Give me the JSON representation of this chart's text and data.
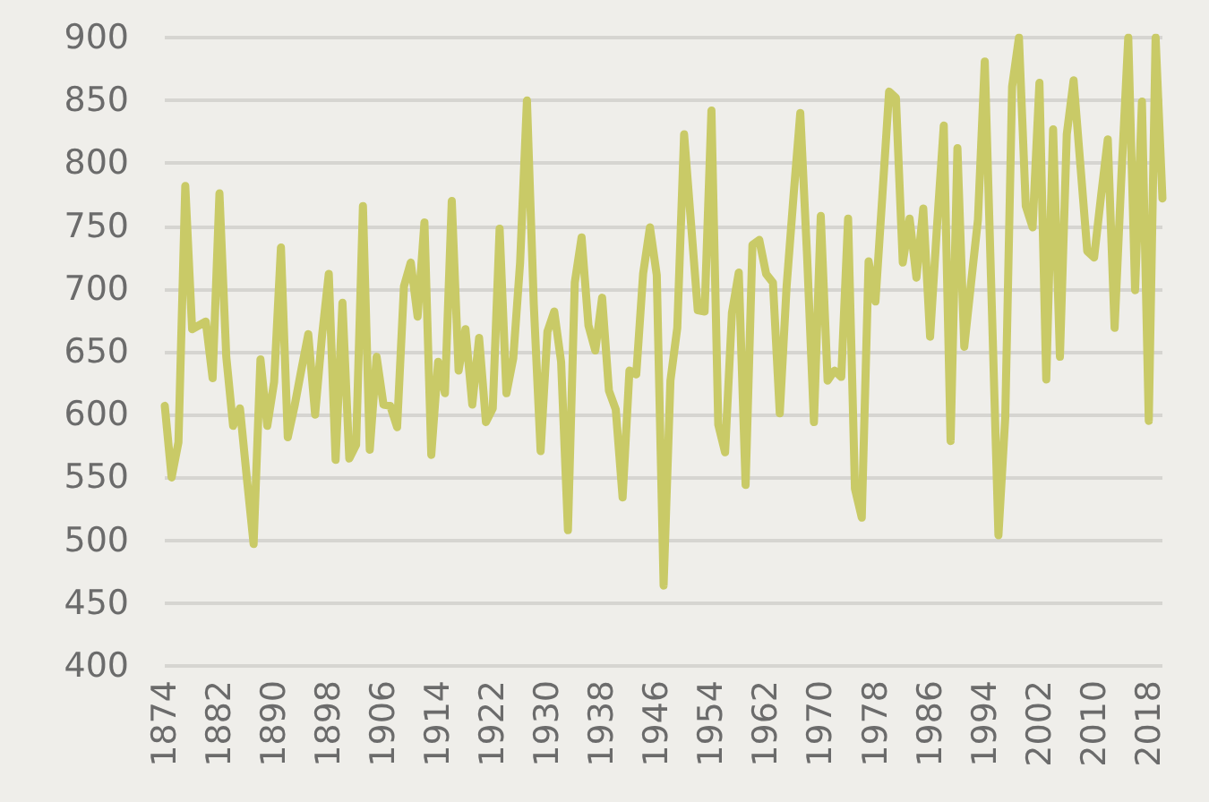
{
  "chart_data": {
    "type": "line",
    "x": [
      1874,
      1875,
      1876,
      1877,
      1878,
      1879,
      1880,
      1881,
      1882,
      1883,
      1884,
      1885,
      1886,
      1887,
      1888,
      1889,
      1890,
      1891,
      1892,
      1893,
      1894,
      1895,
      1896,
      1897,
      1898,
      1899,
      1900,
      1901,
      1902,
      1903,
      1904,
      1905,
      1906,
      1907,
      1908,
      1909,
      1910,
      1911,
      1912,
      1913,
      1914,
      1915,
      1916,
      1917,
      1918,
      1919,
      1920,
      1921,
      1922,
      1923,
      1924,
      1925,
      1926,
      1927,
      1928,
      1929,
      1930,
      1931,
      1932,
      1933,
      1934,
      1935,
      1936,
      1937,
      1938,
      1939,
      1940,
      1941,
      1942,
      1943,
      1944,
      1945,
      1946,
      1947,
      1948,
      1949,
      1950,
      1951,
      1952,
      1953,
      1954,
      1955,
      1956,
      1957,
      1958,
      1959,
      1960,
      1961,
      1962,
      1963,
      1964,
      1965,
      1966,
      1967,
      1968,
      1969,
      1970,
      1971,
      1972,
      1973,
      1974,
      1975,
      1976,
      1977,
      1978,
      1979,
      1980,
      1981,
      1982,
      1983,
      1984,
      1985,
      1986,
      1987,
      1988,
      1989,
      1990,
      1991,
      1992,
      1993,
      1994,
      1995,
      1996,
      1997,
      1998,
      1999,
      2000,
      2001,
      2002,
      2003,
      2004,
      2005,
      2006,
      2007,
      2008,
      2009,
      2010,
      2011,
      2012,
      2013,
      2014,
      2015,
      2016,
      2017,
      2018,
      2019,
      2020
    ],
    "series": [
      {
        "color": "#c9ca67",
        "values": [
          607,
          550,
          578,
          782,
          668,
          671,
          674,
          629,
          776,
          646,
          591,
          605,
          550,
          497,
          644,
          591,
          626,
          733,
          582,
          607,
          636,
          664,
          600,
          662,
          712,
          564,
          689,
          565,
          576,
          766,
          572,
          646,
          608,
          607,
          590,
          702,
          721,
          678,
          753,
          568,
          642,
          617,
          770,
          635,
          668,
          608,
          661,
          594,
          605,
          748,
          617,
          645,
          721,
          850,
          688,
          571,
          666,
          682,
          642,
          508,
          705,
          741,
          671,
          651,
          693,
          619,
          604,
          534,
          635,
          632,
          712,
          749,
          711,
          464,
          627,
          669,
          823,
          753,
          683,
          682,
          842,
          592,
          570,
          681,
          713,
          544,
          735,
          739,
          712,
          705,
          601,
          702,
          773,
          840,
          726,
          594,
          758,
          627,
          635,
          630,
          756,
          541,
          518,
          722,
          690,
          773,
          857,
          852,
          721,
          756,
          709,
          764,
          662,
          749,
          830,
          579,
          812,
          654,
          705,
          755,
          881,
          692,
          504,
          598,
          861,
          900,
          766,
          749,
          864,
          628,
          827,
          646,
          823,
          866,
          798,
          730,
          725,
          773,
          819,
          669,
          790,
          900,
          699,
          849,
          595,
          900,
          772
        ]
      }
    ],
    "xlim": [
      1874,
      2020
    ],
    "xticks": [
      1874,
      1882,
      1890,
      1898,
      1906,
      1914,
      1922,
      1930,
      1938,
      1946,
      1954,
      1962,
      1970,
      1978,
      1986,
      1994,
      2002,
      2010,
      2018
    ],
    "ylim": [
      400,
      900
    ],
    "yticks": [
      400,
      450,
      500,
      550,
      600,
      650,
      700,
      750,
      800,
      850,
      900
    ],
    "grid": "y",
    "marker": "none",
    "line_style": "solid"
  }
}
